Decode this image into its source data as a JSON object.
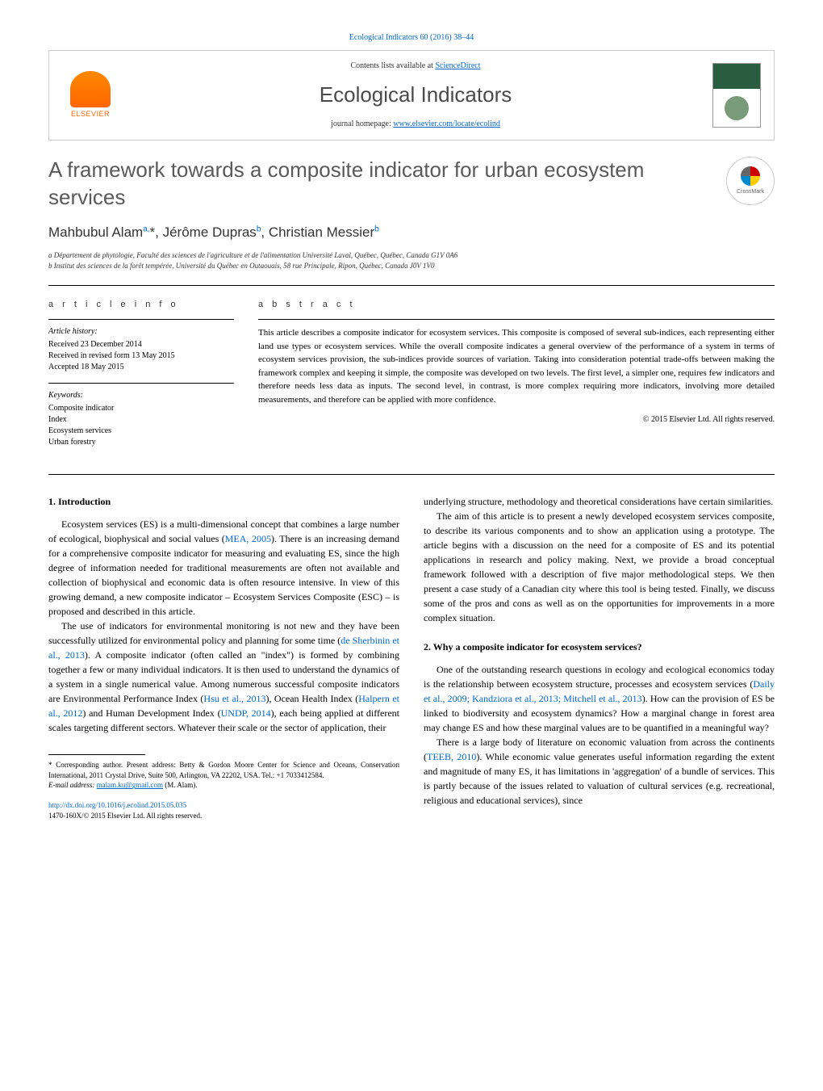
{
  "journal_ref": "Ecological Indicators 60 (2016) 38–44",
  "header": {
    "contents_prefix": "Contents lists available at ",
    "contents_link": "ScienceDirect",
    "journal_title": "Ecological Indicators",
    "homepage_prefix": "journal homepage: ",
    "homepage_link": "www.elsevier.com/locate/ecolind",
    "publisher": "ELSEVIER"
  },
  "article": {
    "title": "A framework towards a composite indicator for urban ecosystem services",
    "crossmark_label": "CrossMark",
    "authors_html": "Mahbubul Alam<sup>a,</sup>*, Jérôme Dupras<sup>b</sup>, Christian Messier<sup>b</sup>",
    "affiliations": [
      "a Département de phytologie, Faculté des sciences de l'agriculture et de l'alimentation Université Laval, Québec, Québec, Canada G1V 0A6",
      "b Institut des sciences de la forêt tempérée, Université du Québec en Outaouais, 58 rue Principale, Ripon, Québec, Canada J0V 1V0"
    ]
  },
  "info": {
    "heading": "a r t i c l e   i n f o",
    "history_heading": "Article history:",
    "history": [
      "Received 23 December 2014",
      "Received in revised form 13 May 2015",
      "Accepted 18 May 2015"
    ],
    "keywords_heading": "Keywords:",
    "keywords": [
      "Composite indicator",
      "Index",
      "Ecosystem services",
      "Urban forestry"
    ]
  },
  "abstract": {
    "heading": "a b s t r a c t",
    "text": "This article describes a composite indicator for ecosystem services. This composite is composed of several sub-indices, each representing either land use types or ecosystem services. While the overall composite indicates a general overview of the performance of a system in terms of ecosystem services provision, the sub-indices provide sources of variation. Taking into consideration potential trade-offs between making the framework complex and keeping it simple, the composite was developed on two levels. The first level, a simpler one, requires few indicators and therefore needs less data as inputs. The second level, in contrast, is more complex requiring more indicators, involving more detailed measurements, and therefore can be applied with more confidence.",
    "copyright": "© 2015 Elsevier Ltd. All rights reserved."
  },
  "sections": {
    "s1": {
      "heading": "1. Introduction",
      "p1_pre": "Ecosystem services (ES) is a multi-dimensional concept that combines a large number of ecological, biophysical and social values (",
      "p1_ref": "MEA, 2005",
      "p1_post": "). There is an increasing demand for a comprehensive composite indicator for measuring and evaluating ES, since the high degree of information needed for traditional measurements are often not available and collection of biophysical and economic data is often resource intensive. In view of this growing demand, a new composite indicator – Ecosystem Services Composite (ESC) – is proposed and described in this article.",
      "p2_a": "The use of indicators for environmental monitoring is not new and they have been successfully utilized for environmental policy and planning for some time (",
      "p2_ref1": "de Sherbinin et al., 2013",
      "p2_b": "). A composite indicator (often called an \"index\") is formed by combining together a few or many individual indicators. It is then used to understand the dynamics of a system in a single numerical value. Among numerous successful composite indicators are Environmental Performance Index (",
      "p2_ref2": "Hsu et al., 2013",
      "p2_c": "), Ocean Health Index (",
      "p2_ref3": "Halpern et al., 2012",
      "p2_d": ") and Human Development Index (",
      "p2_ref4": "UNDP, 2014",
      "p2_e": "), each being applied at different scales targeting different sectors. Whatever their scale or the sector of application, their",
      "p3": "underlying structure, methodology and theoretical considerations have certain similarities.",
      "p4": "The aim of this article is to present a newly developed ecosystem services composite, to describe its various components and to show an application using a prototype. The article begins with a discussion on the need for a composite of ES and its potential applications in research and policy making. Next, we provide a broad conceptual framework followed with a description of five major methodological steps. We then present a case study of a Canadian city where this tool is being tested. Finally, we discuss some of the pros and cons as well as on the opportunities for improvements in a more complex situation."
    },
    "s2": {
      "heading": "2. Why a composite indicator for ecosystem services?",
      "p1_a": "One of the outstanding research questions in ecology and ecological economics today is the relationship between ecosystem structure, processes and ecosystem services (",
      "p1_ref": "Daily et al., 2009; Kandziora et al., 2013; Mitchell et al., 2013",
      "p1_b": "). How can the provision of ES be linked to biodiversity and ecosystem dynamics? How a marginal change in forest area may change ES and how these marginal values are to be quantified in a meaningful way?",
      "p2_a": "There is a large body of literature on economic valuation from across the continents (",
      "p2_ref": "TEEB, 2010",
      "p2_b": "). While economic value generates useful information regarding the extent and magnitude of many ES, it has limitations in 'aggregation' of a bundle of services. This is partly because of the issues related to valuation of cultural services (e.g. recreational, religious and educational services), since"
    }
  },
  "footnote": {
    "corresponding": "* Corresponding author. Present address: Betty & Gordon Moore Center for Science and Oceans, Conservation International, 2011 Crystal Drive, Suite 500, Arlington, VA 22202, USA. Tel.: +1 7033412584.",
    "email_label": "E-mail address: ",
    "email": "malam.ku@gmail.com",
    "email_suffix": " (M. Alam)."
  },
  "footer": {
    "doi": "http://dx.doi.org/10.1016/j.ecolind.2015.05.035",
    "copyright": "1470-160X/© 2015 Elsevier Ltd. All rights reserved."
  },
  "colors": {
    "link": "#0066cc",
    "elsevier_orange": "#ff6600",
    "title_gray": "#5a5a5a",
    "text": "#000000"
  }
}
